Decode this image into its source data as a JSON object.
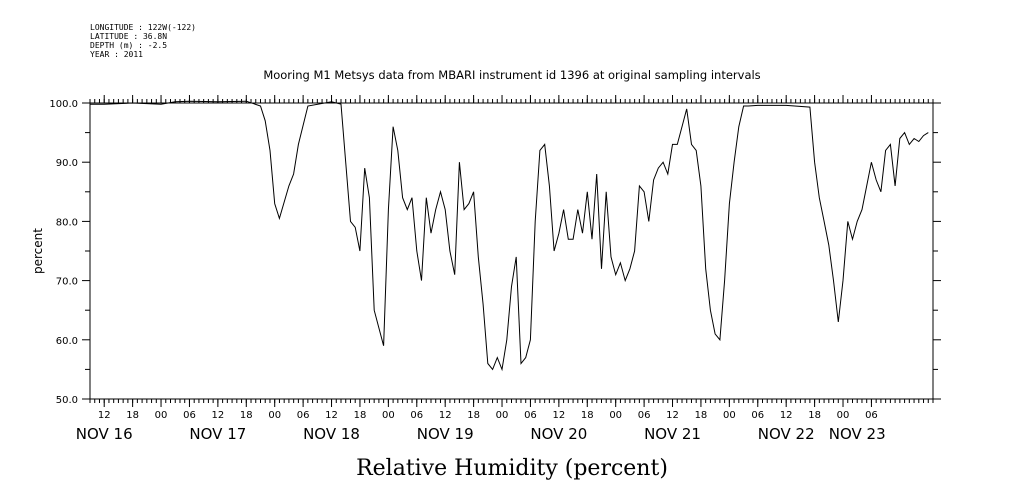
{
  "header": {
    "meta_lines": [
      "LONGITUDE : 122W(-122)",
      "LATITUDE : 36.8N",
      "DEPTH (m) : -2.5",
      "YEAR : 2011"
    ]
  },
  "chart_data": {
    "type": "line",
    "title": "Mooring M1 Metsys data from MBARI instrument id 1396 at original sampling intervals",
    "xlabel": "Relative Humidity (percent)",
    "ylabel": "percent",
    "ylim": [
      50,
      100
    ],
    "yticks": [
      50,
      60,
      70,
      80,
      90,
      100
    ],
    "ytick_labels": [
      "50.0",
      "60.0",
      "70.0",
      "80.0",
      "90.0",
      "100.0"
    ],
    "xlim": [
      "2011-11-16T09:00",
      "2011-11-23T19:00"
    ],
    "hour_ticks": [
      {
        "t": "2011-11-16T12:00",
        "label": "12"
      },
      {
        "t": "2011-11-16T18:00",
        "label": "18"
      },
      {
        "t": "2011-11-17T00:00",
        "label": "00"
      },
      {
        "t": "2011-11-17T06:00",
        "label": "06"
      },
      {
        "t": "2011-11-17T12:00",
        "label": "12"
      },
      {
        "t": "2011-11-17T18:00",
        "label": "18"
      },
      {
        "t": "2011-11-18T00:00",
        "label": "00"
      },
      {
        "t": "2011-11-18T06:00",
        "label": "06"
      },
      {
        "t": "2011-11-18T12:00",
        "label": "12"
      },
      {
        "t": "2011-11-18T18:00",
        "label": "18"
      },
      {
        "t": "2011-11-19T00:00",
        "label": "00"
      },
      {
        "t": "2011-11-19T06:00",
        "label": "06"
      },
      {
        "t": "2011-11-19T12:00",
        "label": "12"
      },
      {
        "t": "2011-11-19T18:00",
        "label": "18"
      },
      {
        "t": "2011-11-20T00:00",
        "label": "00"
      },
      {
        "t": "2011-11-20T06:00",
        "label": "06"
      },
      {
        "t": "2011-11-20T12:00",
        "label": "12"
      },
      {
        "t": "2011-11-20T18:00",
        "label": "18"
      },
      {
        "t": "2011-11-21T00:00",
        "label": "00"
      },
      {
        "t": "2011-11-21T06:00",
        "label": "06"
      },
      {
        "t": "2011-11-21T12:00",
        "label": "12"
      },
      {
        "t": "2011-11-21T18:00",
        "label": "18"
      },
      {
        "t": "2011-11-22T00:00",
        "label": "00"
      },
      {
        "t": "2011-11-22T06:00",
        "label": "06"
      },
      {
        "t": "2011-11-22T12:00",
        "label": "12"
      },
      {
        "t": "2011-11-22T18:00",
        "label": "18"
      },
      {
        "t": "2011-11-23T00:00",
        "label": "00"
      },
      {
        "t": "2011-11-23T06:00",
        "label": "06"
      }
    ],
    "day_labels": [
      {
        "t": "2011-11-16T12:00",
        "label": "NOV 16"
      },
      {
        "t": "2011-11-17T12:00",
        "label": "NOV 17"
      },
      {
        "t": "2011-11-18T12:00",
        "label": "NOV 18"
      },
      {
        "t": "2011-11-19T12:00",
        "label": "NOV 19"
      },
      {
        "t": "2011-11-20T12:00",
        "label": "NOV 20"
      },
      {
        "t": "2011-11-21T12:00",
        "label": "NOV 21"
      },
      {
        "t": "2011-11-22T12:00",
        "label": "NOV 22"
      },
      {
        "t": "2011-11-23T03:00",
        "label": "NOV 23"
      }
    ],
    "grid": false,
    "series": [
      {
        "x": [
          "2011-11-16T09:00",
          "2011-11-16T12:00",
          "2011-11-16T18:00",
          "2011-11-17T00:00",
          "2011-11-17T03:00",
          "2011-11-17T06:00",
          "2011-11-17T12:00",
          "2011-11-17T18:00",
          "2011-11-17T21:00",
          "2011-11-17T22:00",
          "2011-11-17T23:00",
          "2011-11-18T00:00",
          "2011-11-18T01:00",
          "2011-11-18T03:00",
          "2011-11-18T04:00",
          "2011-11-18T05:00",
          "2011-11-18T07:00",
          "2011-11-18T12:00",
          "2011-11-18T14:00",
          "2011-11-18T15:00",
          "2011-11-18T16:00",
          "2011-11-18T17:00",
          "2011-11-18T18:00",
          "2011-11-18T19:00",
          "2011-11-18T20:00",
          "2011-11-18T21:00",
          "2011-11-18T22:00",
          "2011-11-18T23:00",
          "2011-11-19T00:00",
          "2011-11-19T01:00",
          "2011-11-19T02:00",
          "2011-11-19T03:00",
          "2011-11-19T04:00",
          "2011-11-19T05:00",
          "2011-11-19T06:00",
          "2011-11-19T07:00",
          "2011-11-19T08:00",
          "2011-11-19T09:00",
          "2011-11-19T10:00",
          "2011-11-19T11:00",
          "2011-11-19T12:00",
          "2011-11-19T13:00",
          "2011-11-19T14:00",
          "2011-11-19T15:00",
          "2011-11-19T16:00",
          "2011-11-19T17:00",
          "2011-11-19T18:00",
          "2011-11-19T19:00",
          "2011-11-19T20:00",
          "2011-11-19T21:00",
          "2011-11-19T22:00",
          "2011-11-19T23:00",
          "2011-11-20T00:00",
          "2011-11-20T01:00",
          "2011-11-20T02:00",
          "2011-11-20T03:00",
          "2011-11-20T04:00",
          "2011-11-20T05:00",
          "2011-11-20T06:00",
          "2011-11-20T07:00",
          "2011-11-20T08:00",
          "2011-11-20T09:00",
          "2011-11-20T10:00",
          "2011-11-20T11:00",
          "2011-11-20T12:00",
          "2011-11-20T13:00",
          "2011-11-20T14:00",
          "2011-11-20T15:00",
          "2011-11-20T16:00",
          "2011-11-20T17:00",
          "2011-11-20T18:00",
          "2011-11-20T19:00",
          "2011-11-20T20:00",
          "2011-11-20T21:00",
          "2011-11-20T22:00",
          "2011-11-20T23:00",
          "2011-11-21T00:00",
          "2011-11-21T01:00",
          "2011-11-21T02:00",
          "2011-11-21T03:00",
          "2011-11-21T04:00",
          "2011-11-21T05:00",
          "2011-11-21T06:00",
          "2011-11-21T07:00",
          "2011-11-21T08:00",
          "2011-11-21T09:00",
          "2011-11-21T10:00",
          "2011-11-21T11:00",
          "2011-11-21T12:00",
          "2011-11-21T13:00",
          "2011-11-21T14:00",
          "2011-11-21T15:00",
          "2011-11-21T16:00",
          "2011-11-21T17:00",
          "2011-11-21T18:00",
          "2011-11-21T19:00",
          "2011-11-21T20:00",
          "2011-11-21T21:00",
          "2011-11-21T22:00",
          "2011-11-21T23:00",
          "2011-11-22T00:00",
          "2011-11-22T01:00",
          "2011-11-22T02:00",
          "2011-11-22T03:00",
          "2011-11-22T04:00",
          "2011-11-22T06:00",
          "2011-11-22T12:00",
          "2011-11-22T17:00",
          "2011-11-22T18:00",
          "2011-11-22T19:00",
          "2011-11-22T20:00",
          "2011-11-22T21:00",
          "2011-11-22T22:00",
          "2011-11-22T23:00",
          "2011-11-23T00:00",
          "2011-11-23T01:00",
          "2011-11-23T02:00",
          "2011-11-23T03:00",
          "2011-11-23T04:00",
          "2011-11-23T05:00",
          "2011-11-23T06:00",
          "2011-11-23T07:00",
          "2011-11-23T08:00",
          "2011-11-23T09:00",
          "2011-11-23T10:00",
          "2011-11-23T11:00",
          "2011-11-23T12:00",
          "2011-11-23T13:00",
          "2011-11-23T14:00",
          "2011-11-23T15:00",
          "2011-11-23T16:00",
          "2011-11-23T17:00",
          "2011-11-23T18:00"
        ],
        "y": [
          99.8,
          99.8,
          100.0,
          99.8,
          100.2,
          100.3,
          100.2,
          100.3,
          99.5,
          97.0,
          92.0,
          83.0,
          80.5,
          86.0,
          88.0,
          93.0,
          99.5,
          100.2,
          99.8,
          90.0,
          80.0,
          79.0,
          75.0,
          89.0,
          84.0,
          65.0,
          62.0,
          59.0,
          82.0,
          96.0,
          92.0,
          84.0,
          82.0,
          84.0,
          75.0,
          70.0,
          84.0,
          78.0,
          82.0,
          85.0,
          82.0,
          75.0,
          71.0,
          90.0,
          82.0,
          83.0,
          85.0,
          74.0,
          66.0,
          56.0,
          55.0,
          57.0,
          55.0,
          60.0,
          69.0,
          74.0,
          56.0,
          57.0,
          60.0,
          80.0,
          92.0,
          93.0,
          86.0,
          75.0,
          78.0,
          82.0,
          77.0,
          77.0,
          82.0,
          78.0,
          85.0,
          77.0,
          88.0,
          72.0,
          85.0,
          74.0,
          71.0,
          73.0,
          70.0,
          72.0,
          75.0,
          86.0,
          85.0,
          80.0,
          87.0,
          89.0,
          90.0,
          88.0,
          93.0,
          93.0,
          96.0,
          99.0,
          93.0,
          92.0,
          86.0,
          72.0,
          65.0,
          61.0,
          60.0,
          70.0,
          83.0,
          90.0,
          96.0,
          99.5,
          99.5,
          99.6,
          99.6,
          99.3,
          90.0,
          84.0,
          80.0,
          76.0,
          70.0,
          63.0,
          70.0,
          80.0,
          77.0,
          80.0,
          82.0,
          86.0,
          90.0,
          87.0,
          85.0,
          92.0,
          93.0,
          86.0,
          94.0,
          95.0,
          93.0,
          94.0,
          93.5,
          94.5,
          95.0
        ]
      }
    ]
  }
}
